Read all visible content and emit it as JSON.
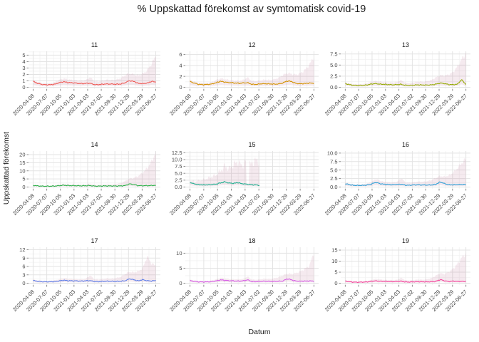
{
  "title": "% Uppskattad förekomst av symtomatisk covid-19",
  "chart_data": {
    "type": "line",
    "title": "% Uppskattad förekomst av symtomatisk covid-19",
    "xlabel": "Datum",
    "ylabel": "Uppskattad förekomst",
    "legend": "none",
    "grid": "on",
    "facet_layout": "3x3",
    "band_color": "#b56a8e",
    "band_opacity": 0.14,
    "grid_major": "#e3e3e3",
    "grid_minor": "#f2f2f2",
    "tick_color": "#8b8b8b",
    "tick_label_color": "#454545",
    "x_range": [
      "2020-04-08",
      "2022-06-27"
    ],
    "x_tick_labels": [
      "2020-04-08",
      "2020-07-07",
      "2020-10-05",
      "2021-01-03",
      "2021-04-03",
      "2021-07-02",
      "2021-09-30",
      "2021-12-29",
      "2022-03-29",
      "2022-06-27"
    ],
    "panels": [
      {
        "id": "11",
        "color": "#ef5a55",
        "ytick_values": [
          0,
          1,
          2,
          3,
          4,
          5
        ],
        "ytick_labels": [
          "0",
          "1",
          "2",
          "3",
          "4",
          "5"
        ],
        "ymax": 5.6,
        "x_end": 1,
        "noise": 0.1,
        "mean": [
          0.88,
          0.62,
          0.45,
          0.38,
          0.4,
          0.5,
          0.72,
          0.85,
          0.75,
          0.7,
          0.62,
          0.58,
          0.6,
          0.62,
          0.42,
          0.4,
          0.48,
          0.52,
          0.5,
          0.46,
          0.52,
          0.72,
          1.0,
          0.92,
          0.62,
          0.55,
          0.65,
          0.92,
          0.8
        ],
        "upper": [
          1.12,
          0.85,
          0.68,
          0.62,
          0.66,
          0.82,
          1.15,
          1.35,
          1.22,
          1.12,
          1.05,
          1.02,
          1.1,
          1.55,
          0.95,
          0.92,
          1.05,
          1.15,
          1.1,
          1.18,
          1.4,
          1.9,
          2.15,
          2.0,
          1.85,
          2.1,
          2.6,
          3.6,
          4.9
        ]
      },
      {
        "id": "12",
        "color": "#d39200",
        "ytick_values": [
          0,
          2,
          4,
          6
        ],
        "ytick_labels": [
          "0",
          "2",
          "4",
          "6"
        ],
        "ymax": 6.6,
        "x_end": 1,
        "noise": 0.1,
        "mean": [
          1.05,
          0.75,
          0.55,
          0.48,
          0.52,
          0.62,
          0.85,
          1.1,
          0.95,
          0.85,
          0.78,
          0.74,
          0.78,
          0.82,
          0.55,
          0.52,
          0.62,
          0.66,
          0.62,
          0.56,
          0.62,
          0.8,
          1.15,
          1.05,
          0.7,
          0.62,
          0.7,
          0.78,
          0.72
        ],
        "upper": [
          1.38,
          1.02,
          0.82,
          0.74,
          0.8,
          0.98,
          1.35,
          1.62,
          1.45,
          1.32,
          1.25,
          1.22,
          1.32,
          1.8,
          1.15,
          1.12,
          1.28,
          1.4,
          1.32,
          1.45,
          1.72,
          2.25,
          2.6,
          2.45,
          2.3,
          2.6,
          3.2,
          4.2,
          5.6
        ]
      },
      {
        "id": "13",
        "color": "#93aa00",
        "ytick_values": [
          0,
          2.5,
          5,
          7.5
        ],
        "ytick_labels": [
          "0.0",
          "2.5",
          "5.0",
          "7.5"
        ],
        "ymax": 8.1,
        "x_end": 1,
        "noise": 0.1,
        "mean": [
          0.82,
          0.58,
          0.44,
          0.4,
          0.43,
          0.52,
          0.7,
          0.82,
          0.72,
          0.66,
          0.6,
          0.57,
          0.6,
          0.64,
          0.45,
          0.42,
          0.5,
          0.55,
          0.52,
          0.49,
          0.55,
          0.7,
          0.92,
          0.85,
          0.62,
          0.58,
          0.68,
          1.75,
          0.6
        ],
        "upper": [
          1.15,
          0.88,
          0.72,
          0.68,
          0.74,
          0.9,
          1.22,
          1.42,
          1.28,
          1.16,
          1.1,
          1.08,
          1.18,
          1.6,
          1.02,
          0.98,
          1.12,
          1.28,
          1.22,
          1.38,
          1.65,
          2.2,
          2.7,
          2.6,
          2.85,
          3.4,
          4.6,
          6.3,
          7.7
        ]
      },
      {
        "id": "14",
        "color": "#2eb34b",
        "ytick_values": [
          0,
          5,
          10,
          15,
          20
        ],
        "ytick_labels": [
          "0",
          "5",
          "10",
          "15",
          "20"
        ],
        "ymax": 22.2,
        "x_end": 1,
        "noise": 0.1,
        "mean": [
          1.0,
          0.7,
          0.54,
          0.5,
          0.52,
          0.62,
          0.85,
          1.1,
          0.92,
          0.85,
          0.8,
          0.76,
          0.82,
          0.86,
          0.58,
          0.55,
          0.65,
          0.7,
          0.66,
          0.6,
          0.7,
          0.9,
          1.9,
          1.5,
          0.85,
          0.78,
          0.85,
          0.92,
          1.05
        ],
        "upper": [
          1.5,
          1.1,
          0.9,
          0.85,
          0.92,
          1.1,
          1.55,
          1.95,
          1.72,
          1.6,
          1.5,
          1.48,
          1.6,
          2.1,
          1.4,
          1.35,
          1.55,
          1.7,
          1.62,
          1.9,
          2.4,
          3.6,
          5.2,
          5.6,
          6.8,
          8.8,
          11.5,
          15.5,
          21.5
        ]
      },
      {
        "id": "15",
        "color": "#1fae8f",
        "ytick_values": [
          0,
          2.5,
          5,
          7.5,
          10,
          12.5
        ],
        "ytick_labels": [
          "0.0",
          "2.5",
          "5.0",
          "7.5",
          "10.0",
          "12.5"
        ],
        "ymax": 13.1,
        "x_end": 0.56,
        "noise": 0.22,
        "gaps": [
          [
            0.455,
            0.478
          ]
        ],
        "mean": [
          1.6,
          1.15,
          0.88,
          0.76,
          0.78,
          0.88,
          1.05,
          1.45,
          1.9,
          1.45,
          1.3,
          1.65,
          1.2,
          1.05,
          0.88,
          0.78,
          0.62
        ],
        "upper": [
          2.3,
          2.05,
          2.25,
          2.6,
          3.1,
          3.7,
          4.4,
          5.8,
          7.6,
          6.6,
          8.2,
          9.2,
          7.8,
          9.6,
          8.2,
          9.8,
          9.2
        ]
      },
      {
        "id": "16",
        "color": "#2d9fd6",
        "ytick_values": [
          0,
          2.5,
          5,
          7.5,
          10
        ],
        "ytick_labels": [
          "0.0",
          "2.5",
          "5.0",
          "7.5",
          "10.0"
        ],
        "ymax": 10.6,
        "x_end": 1,
        "noise": 0.1,
        "mean": [
          0.95,
          0.68,
          0.5,
          0.46,
          0.48,
          0.58,
          0.8,
          1.35,
          1.05,
          0.8,
          0.72,
          0.68,
          0.75,
          0.8,
          0.55,
          0.52,
          0.62,
          0.66,
          0.6,
          0.56,
          0.62,
          0.78,
          1.45,
          1.05,
          0.68,
          0.62,
          0.7,
          0.74,
          0.7
        ],
        "upper": [
          1.3,
          1.0,
          0.82,
          0.76,
          0.82,
          1.0,
          1.42,
          2.3,
          1.9,
          1.52,
          1.4,
          1.38,
          1.5,
          2.6,
          1.32,
          1.28,
          1.42,
          1.6,
          1.52,
          1.7,
          2.05,
          2.65,
          3.25,
          3.05,
          3.35,
          4.2,
          5.5,
          7.0,
          8.3
        ]
      },
      {
        "id": "17",
        "color": "#5f7fe8",
        "ytick_values": [
          0,
          3,
          6,
          9,
          12
        ],
        "ytick_labels": [
          "0",
          "3",
          "6",
          "9",
          "12"
        ],
        "ymax": 12.9,
        "x_end": 1,
        "noise": 0.1,
        "mean": [
          0.95,
          0.7,
          0.55,
          0.5,
          0.53,
          0.62,
          0.82,
          1.05,
          0.92,
          0.85,
          0.8,
          0.77,
          0.85,
          0.92,
          0.6,
          0.56,
          0.66,
          0.72,
          0.66,
          0.62,
          0.72,
          0.88,
          1.55,
          1.25,
          0.85,
          1.25,
          0.92,
          0.8,
          0.95
        ],
        "upper": [
          1.32,
          1.02,
          0.86,
          0.8,
          0.86,
          1.02,
          1.42,
          1.82,
          1.62,
          1.5,
          1.42,
          1.4,
          1.55,
          2.8,
          1.42,
          1.35,
          1.52,
          1.72,
          1.62,
          1.85,
          2.25,
          3.25,
          4.1,
          3.85,
          4.3,
          5.3,
          9.6,
          7.2,
          6.2
        ]
      },
      {
        "id": "18",
        "color": "#d55ce5",
        "ytick_values": [
          0,
          5,
          10
        ],
        "ytick_labels": [
          "0",
          "5",
          "10"
        ],
        "ymax": 12.0,
        "x_end": 1,
        "noise": 0.1,
        "mean": [
          0.85,
          0.62,
          0.46,
          0.42,
          0.46,
          0.56,
          0.78,
          1.1,
          0.95,
          0.82,
          0.74,
          0.7,
          0.78,
          1.1,
          0.56,
          0.52,
          0.62,
          0.68,
          0.62,
          0.58,
          0.66,
          0.78,
          1.45,
          1.1,
          0.7,
          0.66,
          0.72,
          0.76,
          0.7
        ],
        "upper": [
          1.2,
          0.92,
          0.76,
          0.7,
          0.76,
          0.92,
          1.32,
          1.82,
          1.6,
          1.42,
          1.32,
          1.3,
          1.42,
          2.2,
          1.22,
          1.16,
          1.32,
          1.52,
          1.42,
          1.62,
          2.0,
          2.6,
          3.2,
          3.05,
          3.4,
          4.0,
          4.8,
          5.9,
          10.5
        ]
      },
      {
        "id": "19",
        "color": "#f4459c",
        "ytick_values": [
          0,
          5,
          10,
          15
        ],
        "ytick_labels": [
          "0",
          "5",
          "10",
          "15"
        ],
        "ymax": 16.3,
        "x_end": 1,
        "noise": 0.1,
        "mean": [
          0.95,
          0.66,
          0.5,
          0.46,
          0.5,
          0.6,
          0.82,
          1.05,
          0.92,
          0.82,
          0.76,
          0.72,
          0.8,
          0.86,
          0.58,
          0.53,
          0.64,
          0.7,
          0.66,
          0.6,
          0.7,
          0.82,
          1.6,
          1.15,
          0.76,
          0.95,
          0.82,
          0.86,
          0.8
        ],
        "upper": [
          1.32,
          1.02,
          0.82,
          0.76,
          0.82,
          1.02,
          1.42,
          1.9,
          1.7,
          1.52,
          1.42,
          1.4,
          1.52,
          2.4,
          1.32,
          1.26,
          1.46,
          1.66,
          1.56,
          1.82,
          2.3,
          3.4,
          4.5,
          4.25,
          5.0,
          6.5,
          8.6,
          11.5,
          13.5
        ]
      }
    ]
  }
}
